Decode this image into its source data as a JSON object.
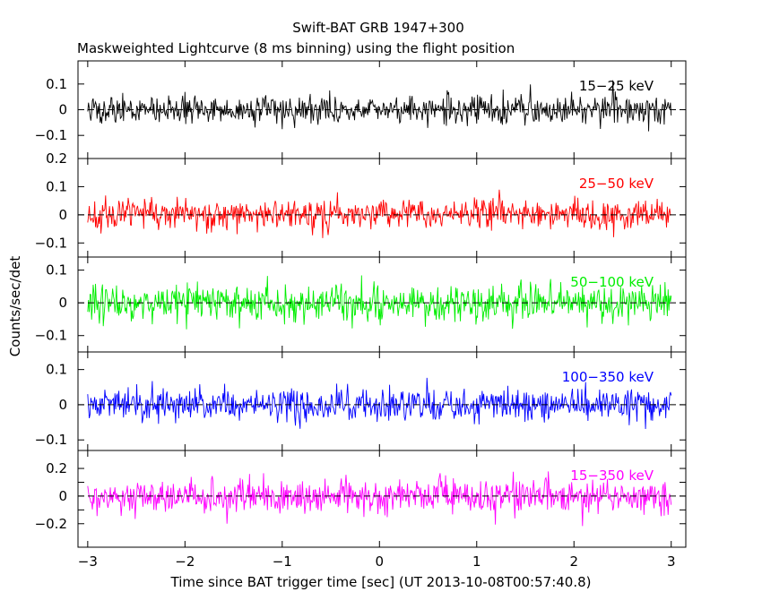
{
  "chart_data": {
    "type": "line",
    "title": "Swift-BAT GRB 1947+300",
    "subtitle": "Maskweighted Lightcurve (8 ms binning) using the flight position",
    "xlabel": "Time since BAT trigger time [sec] (UT 2013-10-08T00:57:40.8)",
    "ylabel": "Counts/sec/det",
    "xlim": [
      -3.1,
      3.15
    ],
    "xticks": [
      -3,
      -2,
      -1,
      0,
      1,
      2,
      3
    ],
    "xtick_labels": [
      "−3",
      "−2",
      "−1",
      "0",
      "1",
      "2",
      "3"
    ],
    "binning_sec": 0.008,
    "grid": false,
    "panels": [
      {
        "name": "15-25 keV",
        "label": "15−25 keV",
        "color": "#000000",
        "ylim": [
          -0.19,
          0.19
        ],
        "yticks": [
          -0.1,
          0,
          0.1
        ],
        "ytick_labels": [
          "−0.1",
          "0",
          "0.1"
        ],
        "noise_sigma": 0.045,
        "seed": 11
      },
      {
        "name": "25-50 keV",
        "label": "25−50 keV",
        "color": "#ff0000",
        "ylim": [
          -0.15,
          0.2
        ],
        "yticks": [
          -0.1,
          0,
          0.1,
          0.2
        ],
        "ytick_labels": [
          "−0.1",
          "0",
          "0.1",
          "0.2"
        ],
        "noise_sigma": 0.045,
        "seed": 23
      },
      {
        "name": "50-100 keV",
        "label": "50−100 keV",
        "color": "#00ee00",
        "ylim": [
          -0.15,
          0.14
        ],
        "yticks": [
          -0.1,
          0,
          0.1
        ],
        "ytick_labels": [
          "−0.1",
          "0",
          "0.1"
        ],
        "noise_sigma": 0.045,
        "seed": 37
      },
      {
        "name": "100-350 keV",
        "label": "100−350 keV",
        "color": "#0000ff",
        "ylim": [
          -0.13,
          0.15
        ],
        "yticks": [
          -0.1,
          0,
          0.1
        ],
        "ytick_labels": [
          "−0.1",
          "0",
          "0.1"
        ],
        "noise_sigma": 0.04,
        "seed": 51
      },
      {
        "name": "15-350 keV",
        "label": "15−350 keV",
        "color": "#ff00ff",
        "ylim": [
          -0.37,
          0.33
        ],
        "yticks": [
          -0.2,
          -0.1,
          0,
          0.1,
          0.2
        ],
        "ytick_labels": [
          "−0.2",
          "",
          "0",
          "",
          "0.2"
        ],
        "noise_sigma": 0.1,
        "seed": 73
      }
    ],
    "series_x_range": [
      -3.0,
      3.0
    ]
  }
}
